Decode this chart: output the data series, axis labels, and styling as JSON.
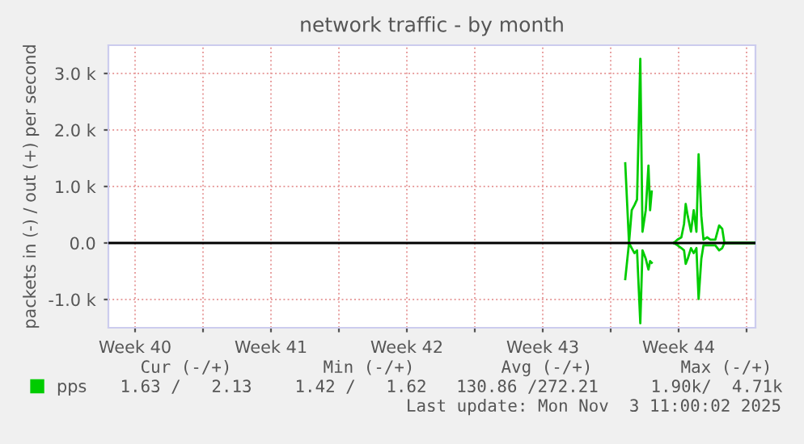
{
  "chart_data": {
    "type": "line",
    "title": "network traffic - by month",
    "ylabel": "packets in (-) / out (+) per second",
    "x": [
      "2025-10-27T18:00",
      "2025-10-27T22:40",
      "2025-10-28T02:00",
      "2025-10-28T05:24",
      "2025-10-28T08:35",
      "2025-10-28T12:37",
      "2025-10-28T15:19",
      "2025-10-28T19:21",
      "2025-10-28T22:42",
      "2025-10-29T00:43",
      "2025-10-29T02:44",
      "2025-10-29T15:50",
      "2025-10-30T05:57",
      "2025-10-30T10:39",
      "2025-10-30T15:22",
      "2025-10-30T18:43",
      "2025-10-30T20:44",
      "2025-10-30T23:15",
      "2025-10-31T03:17",
      "2025-10-31T06:39",
      "2025-10-31T10:00",
      "2025-10-31T12:42",
      "2025-10-31T16:03",
      "2025-10-31T18:45",
      "2025-10-31T23:17",
      "2025-11-01T03:19",
      "2025-11-01T09:22",
      "2025-11-01T14:04",
      "2025-11-01T17:55",
      "2025-11-01T20:37",
      "2025-11-02T02:00",
      "2025-11-03T10:05"
    ],
    "series": [
      {
        "name": "pps",
        "color": "#00cc00",
        "values": [
          1410,
          0,
          580,
          670,
          770,
          3260,
          200,
          580,
          1370,
          580,
          910,
          null,
          0,
          60,
          100,
          340,
          690,
          480,
          200,
          580,
          200,
          1570,
          480,
          60,
          100,
          60,
          60,
          310,
          250,
          0,
          0,
          0
        ]
      },
      {
        "color": "#00cc00",
        "values": [
          -640,
          0,
          -90,
          -180,
          -130,
          -1420,
          -130,
          -280,
          -470,
          -320,
          -350,
          null,
          0,
          -40,
          -90,
          -130,
          -370,
          -280,
          -90,
          -180,
          -90,
          -990,
          -280,
          -40,
          -40,
          -40,
          -40,
          -130,
          -90,
          0,
          0,
          0
        ]
      }
    ],
    "xlim": [
      "2025-10-01T03:00",
      "2025-11-03T11:00"
    ],
    "xticks": [
      {
        "value": "2025-10-02T12:00",
        "label": "Week 40"
      },
      {
        "value": "2025-10-09T12:00",
        "label": "Week 41"
      },
      {
        "value": "2025-10-16T12:00",
        "label": "Week 42"
      },
      {
        "value": "2025-10-23T12:00",
        "label": "Week 43"
      },
      {
        "value": "2025-10-30T12:00",
        "label": "Week 44"
      },
      {
        "value": "2025-10-06",
        "label": null
      },
      {
        "value": "2025-10-13",
        "label": null
      },
      {
        "value": "2025-10-20",
        "label": null
      },
      {
        "value": "2025-10-27",
        "label": null
      },
      {
        "value": "2025-11-03",
        "label": null
      }
    ],
    "ylim": [
      -1500,
      3500
    ],
    "yticks": [
      {
        "value": -1000,
        "label": "-1.0 k"
      },
      {
        "value": 0,
        "label": "0.0"
      },
      {
        "value": 1000,
        "label": "1.0 k"
      },
      {
        "value": 2000,
        "label": "2.0 k"
      },
      {
        "value": 3000,
        "label": "3.0 k"
      }
    ],
    "ref_lines": [
      {
        "axis": "y",
        "value": 0,
        "color": "#000000"
      }
    ],
    "grid": true,
    "legend": "bottom",
    "line_style": "solid",
    "marker": "none",
    "annotations": [
      "Cur (-/+)",
      "Min (-/+)",
      "Avg (-/+)",
      "Max (-/+)",
      "1.63 /   2.13",
      "1.42 /   1.62",
      "130.86 /272.21",
      "1.90k/  4.71k",
      "Last update: Mon Nov  3 11:00:02 2025"
    ]
  }
}
